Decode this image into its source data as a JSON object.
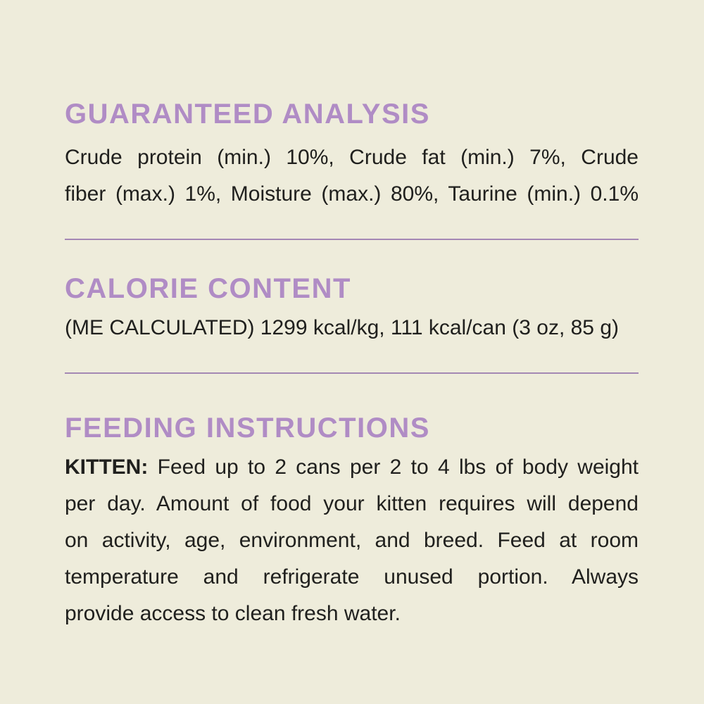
{
  "page": {
    "background_color": "#eeecdb",
    "heading_color": "#b08cc5",
    "text_color": "#20201e",
    "divider_color": "#a488b4"
  },
  "guaranteed_analysis": {
    "heading": "GUARANTEED ANALYSIS",
    "lines": [
      "Crude protein (min.) 10%, Crude fat (min.) 7%, Crude",
      "fiber (max.) 1%, Moisture (max.) 80%, Taurine (min.) 0.1%"
    ]
  },
  "calorie_content": {
    "heading": "CALORIE CONTENT",
    "line": "(ME CALCULATED) 1299 kcal/kg, 111 kcal/can (3 oz, 85 g)"
  },
  "feeding_instructions": {
    "heading": "FEEDING INSTRUCTIONS",
    "kitten_label": "KITTEN:",
    "lines": [
      "Feed up to 2 cans per 2 to 4 lbs of body weight",
      "per day. Amount of food your kitten requires will depend",
      "on activity, age, environment, and breed. Feed at room",
      "temperature and refrigerate unused portion. Always",
      "provide access to clean fresh water."
    ]
  }
}
